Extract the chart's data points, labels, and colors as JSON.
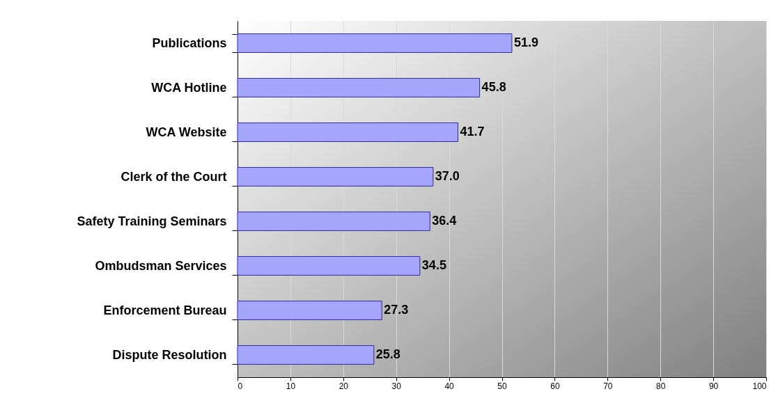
{
  "chart_data": {
    "type": "bar",
    "orientation": "horizontal",
    "categories": [
      "Publications",
      "WCA Hotline",
      "WCA Website",
      "Clerk of the Court",
      "Safety Training Seminars",
      "Ombudsman Services",
      "Enforcement Bureau",
      "Dispute Resolution"
    ],
    "values": [
      51.9,
      45.8,
      41.7,
      37.0,
      36.4,
      34.5,
      27.3,
      25.8
    ],
    "value_labels": [
      "51.9",
      "45.8",
      "41.7",
      "37.0",
      "36.4",
      "34.5",
      "27.3",
      "25.8"
    ],
    "color": "#a6a6ff",
    "xlim": [
      0,
      100
    ],
    "xticks": [
      0,
      10,
      20,
      30,
      40,
      50,
      60,
      70,
      80,
      90,
      100
    ],
    "grid": "x"
  }
}
